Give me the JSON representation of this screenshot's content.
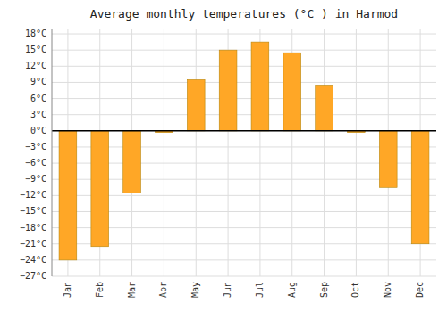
{
  "chart_data": {
    "type": "bar",
    "title": "Average monthly temperatures (°C ) in Harmod",
    "categories": [
      "Jan",
      "Feb",
      "Mar",
      "Apr",
      "May",
      "Jun",
      "Jul",
      "Aug",
      "Sep",
      "Oct",
      "Nov",
      "Dec"
    ],
    "values": [
      -24.0,
      -21.5,
      -11.5,
      -0.3,
      9.5,
      15.0,
      16.5,
      14.5,
      8.5,
      -0.3,
      -10.5,
      -21.0
    ],
    "color": "#FFA726",
    "ylim": [
      -27,
      19
    ],
    "yticks": [
      {
        "value": -27,
        "label": "−27°C"
      },
      {
        "value": -24,
        "label": "−24°C"
      },
      {
        "value": -21,
        "label": "−21°C"
      },
      {
        "value": -18,
        "label": "−18°C"
      },
      {
        "value": -15,
        "label": "−15°C"
      },
      {
        "value": -12,
        "label": "−12°C"
      },
      {
        "value": -9,
        "label": "−9°C"
      },
      {
        "value": -6,
        "label": "−6°C"
      },
      {
        "value": -3,
        "label": "−3°C"
      },
      {
        "value": 0,
        "label": "0°C"
      },
      {
        "value": 3,
        "label": "3°C"
      },
      {
        "value": 6,
        "label": "6°C"
      },
      {
        "value": 9,
        "label": "9°C"
      },
      {
        "value": 12,
        "label": "12°C"
      },
      {
        "value": 15,
        "label": "15°C"
      },
      {
        "value": 18,
        "label": "18°C"
      }
    ],
    "grid": true
  }
}
